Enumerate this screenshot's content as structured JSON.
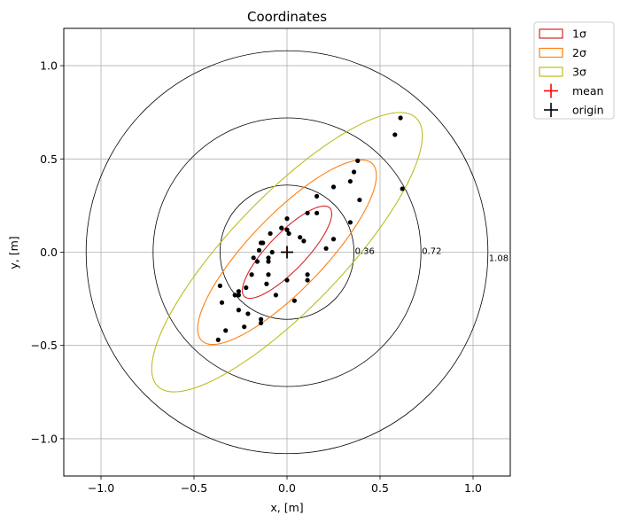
{
  "chart_data": {
    "type": "scatter",
    "title": "Coordinates",
    "xlabel": "x, [m]",
    "ylabel": "y, [m]",
    "xlim": [
      -1.2,
      1.2
    ],
    "ylim": [
      -1.2,
      1.2
    ],
    "xticks": [
      -1.0,
      -0.5,
      0.0,
      0.5,
      1.0
    ],
    "yticks": [
      -1.0,
      -0.5,
      0.0,
      0.5,
      1.0
    ],
    "xtick_labels": [
      "−1.0",
      "−0.5",
      "0.0",
      "0.5",
      "1.0"
    ],
    "ytick_labels": [
      "−1.0",
      "−0.5",
      "0.0",
      "0.5",
      "1.0"
    ],
    "grid": true,
    "legend_position": "outside-upper-right",
    "points": [
      [
        0.61,
        0.72
      ],
      [
        0.58,
        0.63
      ],
      [
        0.62,
        0.34
      ],
      [
        0.38,
        0.49
      ],
      [
        0.36,
        0.43
      ],
      [
        0.34,
        0.38
      ],
      [
        0.25,
        0.35
      ],
      [
        0.39,
        0.28
      ],
      [
        0.16,
        0.3
      ],
      [
        0.11,
        0.21
      ],
      [
        0.16,
        0.21
      ],
      [
        0.0,
        0.18
      ],
      [
        0.34,
        0.16
      ],
      [
        -0.03,
        0.13
      ],
      [
        0.0,
        0.12
      ],
      [
        0.01,
        0.1
      ],
      [
        -0.09,
        0.1
      ],
      [
        0.07,
        0.08
      ],
      [
        0.09,
        0.06
      ],
      [
        0.25,
        0.07
      ],
      [
        -0.14,
        0.05
      ],
      [
        -0.13,
        0.05
      ],
      [
        0.21,
        0.02
      ],
      [
        -0.15,
        0.01
      ],
      [
        -0.08,
        0.0
      ],
      [
        -0.18,
        -0.03
      ],
      [
        -0.1,
        -0.03
      ],
      [
        -0.16,
        -0.05
      ],
      [
        -0.1,
        -0.05
      ],
      [
        0.11,
        -0.12
      ],
      [
        -0.19,
        -0.12
      ],
      [
        -0.1,
        -0.12
      ],
      [
        -0.36,
        -0.18
      ],
      [
        0.11,
        -0.15
      ],
      [
        0.0,
        -0.15
      ],
      [
        -0.11,
        -0.17
      ],
      [
        -0.22,
        -0.19
      ],
      [
        -0.26,
        -0.21
      ],
      [
        -0.28,
        -0.23
      ],
      [
        -0.26,
        -0.23
      ],
      [
        -0.06,
        -0.23
      ],
      [
        0.04,
        -0.26
      ],
      [
        -0.35,
        -0.27
      ],
      [
        -0.26,
        -0.31
      ],
      [
        -0.21,
        -0.33
      ],
      [
        -0.14,
        -0.36
      ],
      [
        -0.14,
        -0.38
      ],
      [
        -0.23,
        -0.4
      ],
      [
        -0.33,
        -0.42
      ],
      [
        -0.37,
        -0.47
      ]
    ],
    "mean": [
      0.0,
      0.0
    ],
    "origin": [
      0.0,
      0.0
    ],
    "ellipses": [
      {
        "name": "1σ",
        "color": "#d62728",
        "center": [
          0.0,
          0.0
        ],
        "semi_major": 0.33,
        "semi_minor": 0.1,
        "angle_deg": 46
      },
      {
        "name": "2σ",
        "color": "#ff7f0e",
        "center": [
          0.0,
          0.0
        ],
        "semi_major": 0.66,
        "semi_minor": 0.2,
        "angle_deg": 46
      },
      {
        "name": "3σ",
        "color": "#bcbd22",
        "center": [
          0.0,
          0.0
        ],
        "semi_major": 1.0,
        "semi_minor": 0.3,
        "angle_deg": 46
      }
    ],
    "circles": [
      {
        "radius": 0.36,
        "label": "0.36"
      },
      {
        "radius": 0.72,
        "label": "0.72"
      },
      {
        "radius": 1.08,
        "label": "1.08"
      }
    ],
    "legend": [
      {
        "label": "1σ",
        "kind": "patch",
        "color": "#d62728"
      },
      {
        "label": "2σ",
        "kind": "patch",
        "color": "#ff7f0e"
      },
      {
        "label": "3σ",
        "kind": "patch",
        "color": "#bcbd22"
      },
      {
        "label": "mean",
        "kind": "plus",
        "color": "#ff0000"
      },
      {
        "label": "origin",
        "kind": "plus",
        "color": "#000000"
      }
    ]
  }
}
